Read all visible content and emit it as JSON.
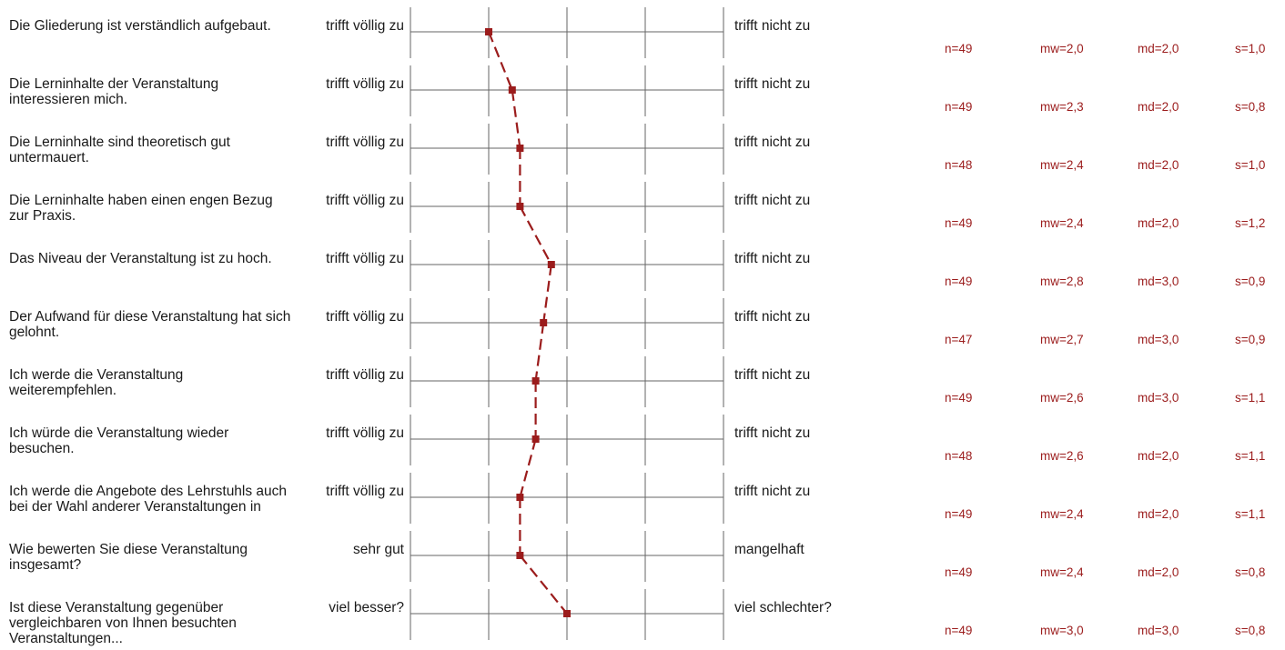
{
  "chart_data": {
    "type": "line",
    "scale_min": 1,
    "scale_max": 5,
    "series_color": "#9b1c1c",
    "items": [
      {
        "question": "Die Gliederung ist verständlich aufgebaut.",
        "left": "trifft völlig zu",
        "right": "trifft nicht zu",
        "n": "n=49",
        "mw": "mw=2,0",
        "md": "md=2,0",
        "s": "s=1,0",
        "value": 2.0
      },
      {
        "question": "Die Lerninhalte der Veranstaltung interessieren mich.",
        "left": "trifft völlig zu",
        "right": "trifft nicht zu",
        "n": "n=49",
        "mw": "mw=2,3",
        "md": "md=2,0",
        "s": "s=0,8",
        "value": 2.3
      },
      {
        "question": "Die Lerninhalte sind theoretisch gut untermauert.",
        "left": "trifft völlig zu",
        "right": "trifft nicht zu",
        "n": "n=48",
        "mw": "mw=2,4",
        "md": "md=2,0",
        "s": "s=1,0",
        "value": 2.4
      },
      {
        "question": "Die Lerninhalte haben einen engen Bezug zur Praxis.",
        "left": "trifft völlig zu",
        "right": "trifft nicht zu",
        "n": "n=49",
        "mw": "mw=2,4",
        "md": "md=2,0",
        "s": "s=1,2",
        "value": 2.4
      },
      {
        "question": "Das Niveau der Veranstaltung ist zu hoch.",
        "left": "trifft völlig zu",
        "right": "trifft nicht zu",
        "n": "n=49",
        "mw": "mw=2,8",
        "md": "md=3,0",
        "s": "s=0,9",
        "value": 2.8
      },
      {
        "question": "Der Aufwand für diese Veranstaltung hat sich gelohnt.",
        "left": "trifft völlig zu",
        "right": "trifft nicht zu",
        "n": "n=47",
        "mw": "mw=2,7",
        "md": "md=3,0",
        "s": "s=0,9",
        "value": 2.7
      },
      {
        "question": "Ich werde die Veranstaltung weiterempfehlen.",
        "left": "trifft völlig zu",
        "right": "trifft nicht zu",
        "n": "n=49",
        "mw": "mw=2,6",
        "md": "md=3,0",
        "s": "s=1,1",
        "value": 2.6
      },
      {
        "question": "Ich würde die Veranstaltung wieder besuchen.",
        "left": "trifft völlig zu",
        "right": "trifft nicht zu",
        "n": "n=48",
        "mw": "mw=2,6",
        "md": "md=2,0",
        "s": "s=1,1",
        "value": 2.6
      },
      {
        "question": "Ich werde die Angebote des Lehrstuhls auch bei der Wahl anderer Veranstaltungen in",
        "left": "trifft völlig zu",
        "right": "trifft nicht zu",
        "n": "n=49",
        "mw": "mw=2,4",
        "md": "md=2,0",
        "s": "s=1,1",
        "value": 2.4
      },
      {
        "question": "Wie bewerten Sie diese Veranstaltung insgesamt?",
        "left": "sehr gut",
        "right": "mangelhaft",
        "n": "n=49",
        "mw": "mw=2,4",
        "md": "md=2,0",
        "s": "s=0,8",
        "value": 2.4
      },
      {
        "question": "Ist diese Veranstaltung gegenüber vergleichbaren von Ihnen besuchten Veranstaltungen...",
        "left": "viel besser?",
        "right": "viel schlechter?",
        "n": "n=49",
        "mw": "mw=3,0",
        "md": "md=3,0",
        "s": "s=0,8",
        "value": 3.0
      }
    ]
  }
}
